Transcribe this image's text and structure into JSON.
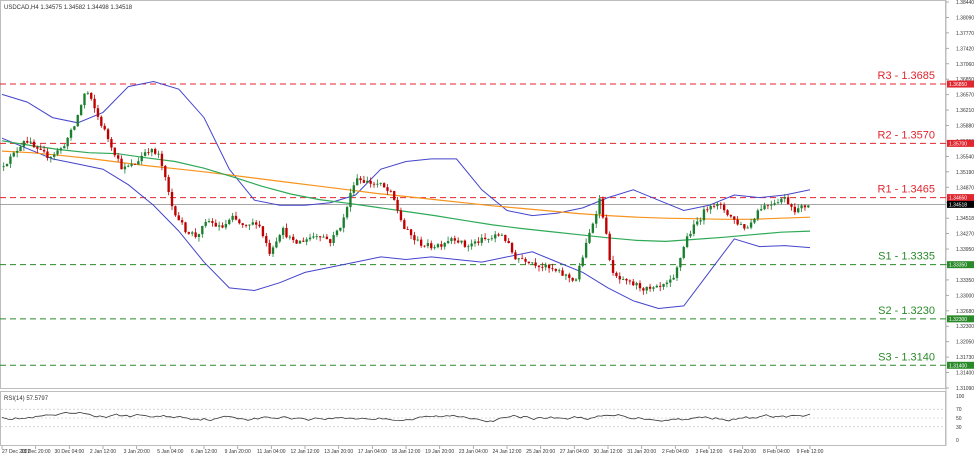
{
  "header": {
    "symbol_line": "USDCAD,H4  1.34575 1.34582 1.34498 1.34518"
  },
  "rsi": {
    "label": "RSI(14) 57.5797",
    "ticks": [
      "100",
      "70",
      "50",
      "30",
      "0"
    ]
  },
  "colors": {
    "bull": "#1a7f2e",
    "bear": "#c00000",
    "ma_fast": "#2eaa57",
    "ma_slow": "#f7941d",
    "bands": "#4444cc",
    "resistance": "#e0262f",
    "support": "#2a8a2a",
    "price_line": "#888888",
    "rsi_line": "#333333"
  },
  "chart_data": {
    "type": "candlestick",
    "symbol": "USDCAD",
    "timeframe": "H4",
    "ylim": [
      1.3096,
      1.3844
    ],
    "y_ticks": [
      "1.38440",
      "1.38090",
      "1.37770",
      "1.37420",
      "1.37060",
      "1.36850",
      "1.36570",
      "1.36210",
      "1.35880",
      "1.35700",
      "1.35540",
      "1.35190",
      "1.34870",
      "1.34650",
      "1.34518",
      "1.34270",
      "1.33950",
      "1.33650",
      "1.33350",
      "1.33000",
      "1.32680",
      "1.32300",
      "1.32050",
      "1.31730",
      "1.31400",
      "1.31090"
    ],
    "x_labels": [
      "27 Dec 2022",
      "28 Dec 20:00",
      "30 Dec 04:00",
      "2 Jan 12:00",
      "3 Jan 20:00",
      "5 Jan 04:00",
      "6 Jan 12:00",
      "9 Jan 20:00",
      "11 Jan 04:00",
      "12 Jan 12:00",
      "13 Jan 20:00",
      "17 Jan 04:00",
      "18 Jan 12:00",
      "19 Jan 20:00",
      "23 Jan 04:00",
      "24 Jan 12:00",
      "25 Jan 20:00",
      "27 Jan 04:00",
      "30 Jan 12:00",
      "31 Jan 20:00",
      "2 Feb 04:00",
      "3 Feb 12:00",
      "6 Feb 20:00",
      "8 Feb 04:00",
      "9 Feb 12:00"
    ],
    "current_price": 1.34518,
    "levels": [
      {
        "label": "R3 - 1.3685",
        "value": 1.3685,
        "tag": "1.36850",
        "kind": "resistance"
      },
      {
        "label": "R2 - 1.3570",
        "value": 1.357,
        "tag": "1.35700",
        "kind": "resistance"
      },
      {
        "label": "R1 - 1.3465",
        "value": 1.3465,
        "tag": "1.34650",
        "kind": "resistance"
      },
      {
        "label": "S1 - 1.3335",
        "value": 1.3335,
        "tag": "1.33350",
        "kind": "support"
      },
      {
        "label": "S2 - 1.3230",
        "value": 1.323,
        "tag": "1.32300",
        "kind": "support"
      },
      {
        "label": "S3 - 1.3140",
        "value": 1.314,
        "tag": "1.31400",
        "kind": "support"
      }
    ],
    "close_anchors": [
      1.3525,
      1.3545,
      1.358,
      1.3555,
      1.3545,
      1.356,
      1.36,
      1.3675,
      1.362,
      1.357,
      1.352,
      1.353,
      1.356,
      1.3545,
      1.345,
      1.3405,
      1.339,
      1.342,
      1.3405,
      1.3425,
      1.3405,
      1.342,
      1.336,
      1.3405,
      1.3375,
      1.3385,
      1.3395,
      1.338,
      1.342,
      1.3505,
      1.3495,
      1.349,
      1.347,
      1.3405,
      1.338,
      1.337,
      1.3375,
      1.339,
      1.337,
      1.338,
      1.3385,
      1.3395,
      1.335,
      1.3345,
      1.3335,
      1.3325,
      1.3315,
      1.3305,
      1.3385,
      1.3465,
      1.3315,
      1.33,
      1.3295,
      1.3285,
      1.329,
      1.3305,
      1.3385,
      1.342,
      1.3455,
      1.3445,
      1.342,
      1.3405,
      1.3445,
      1.3455,
      1.3465,
      1.344,
      1.3452
    ],
    "ma_fast": [
      1.3575,
      1.3566,
      1.3558,
      1.3552,
      1.355,
      1.3542,
      1.3535,
      1.3522,
      1.3505,
      1.3487,
      1.3472,
      1.3461,
      1.3454,
      1.3446,
      1.3438,
      1.343,
      1.3421,
      1.3412,
      1.3405,
      1.3399,
      1.3393,
      1.3387,
      1.3382,
      1.338,
      1.3384,
      1.3388,
      1.3393,
      1.3398,
      1.34
    ],
    "ma_slow": [
      1.3555,
      1.3552,
      1.3547,
      1.3541,
      1.3534,
      1.3527,
      1.3521,
      1.3515,
      1.3508,
      1.3501,
      1.3494,
      1.3487,
      1.348,
      1.3473,
      1.3467,
      1.3461,
      1.3455,
      1.3449,
      1.3444,
      1.3439,
      1.3434,
      1.343,
      1.3427,
      1.3425,
      1.3424,
      1.3423,
      1.3423,
      1.3425,
      1.3427
    ],
    "bb_upper": [
      1.3665,
      1.365,
      1.362,
      1.361,
      1.363,
      1.368,
      1.369,
      1.3675,
      1.362,
      1.352,
      1.346,
      1.345,
      1.345,
      1.3455,
      1.347,
      1.352,
      1.3535,
      1.354,
      1.354,
      1.348,
      1.344,
      1.343,
      1.3435,
      1.3445,
      1.3465,
      1.348,
      1.346,
      1.344,
      1.345,
      1.347,
      1.3465,
      1.347,
      1.348
    ],
    "bb_lower": [
      1.358,
      1.356,
      1.354,
      1.353,
      1.352,
      1.349,
      1.345,
      1.34,
      1.334,
      1.329,
      1.3285,
      1.33,
      1.332,
      1.333,
      1.334,
      1.335,
      1.3345,
      1.335,
      1.3345,
      1.334,
      1.335,
      1.336,
      1.334,
      1.332,
      1.329,
      1.3265,
      1.325,
      1.3255,
      1.332,
      1.3385,
      1.337,
      1.3372,
      1.3368
    ]
  }
}
